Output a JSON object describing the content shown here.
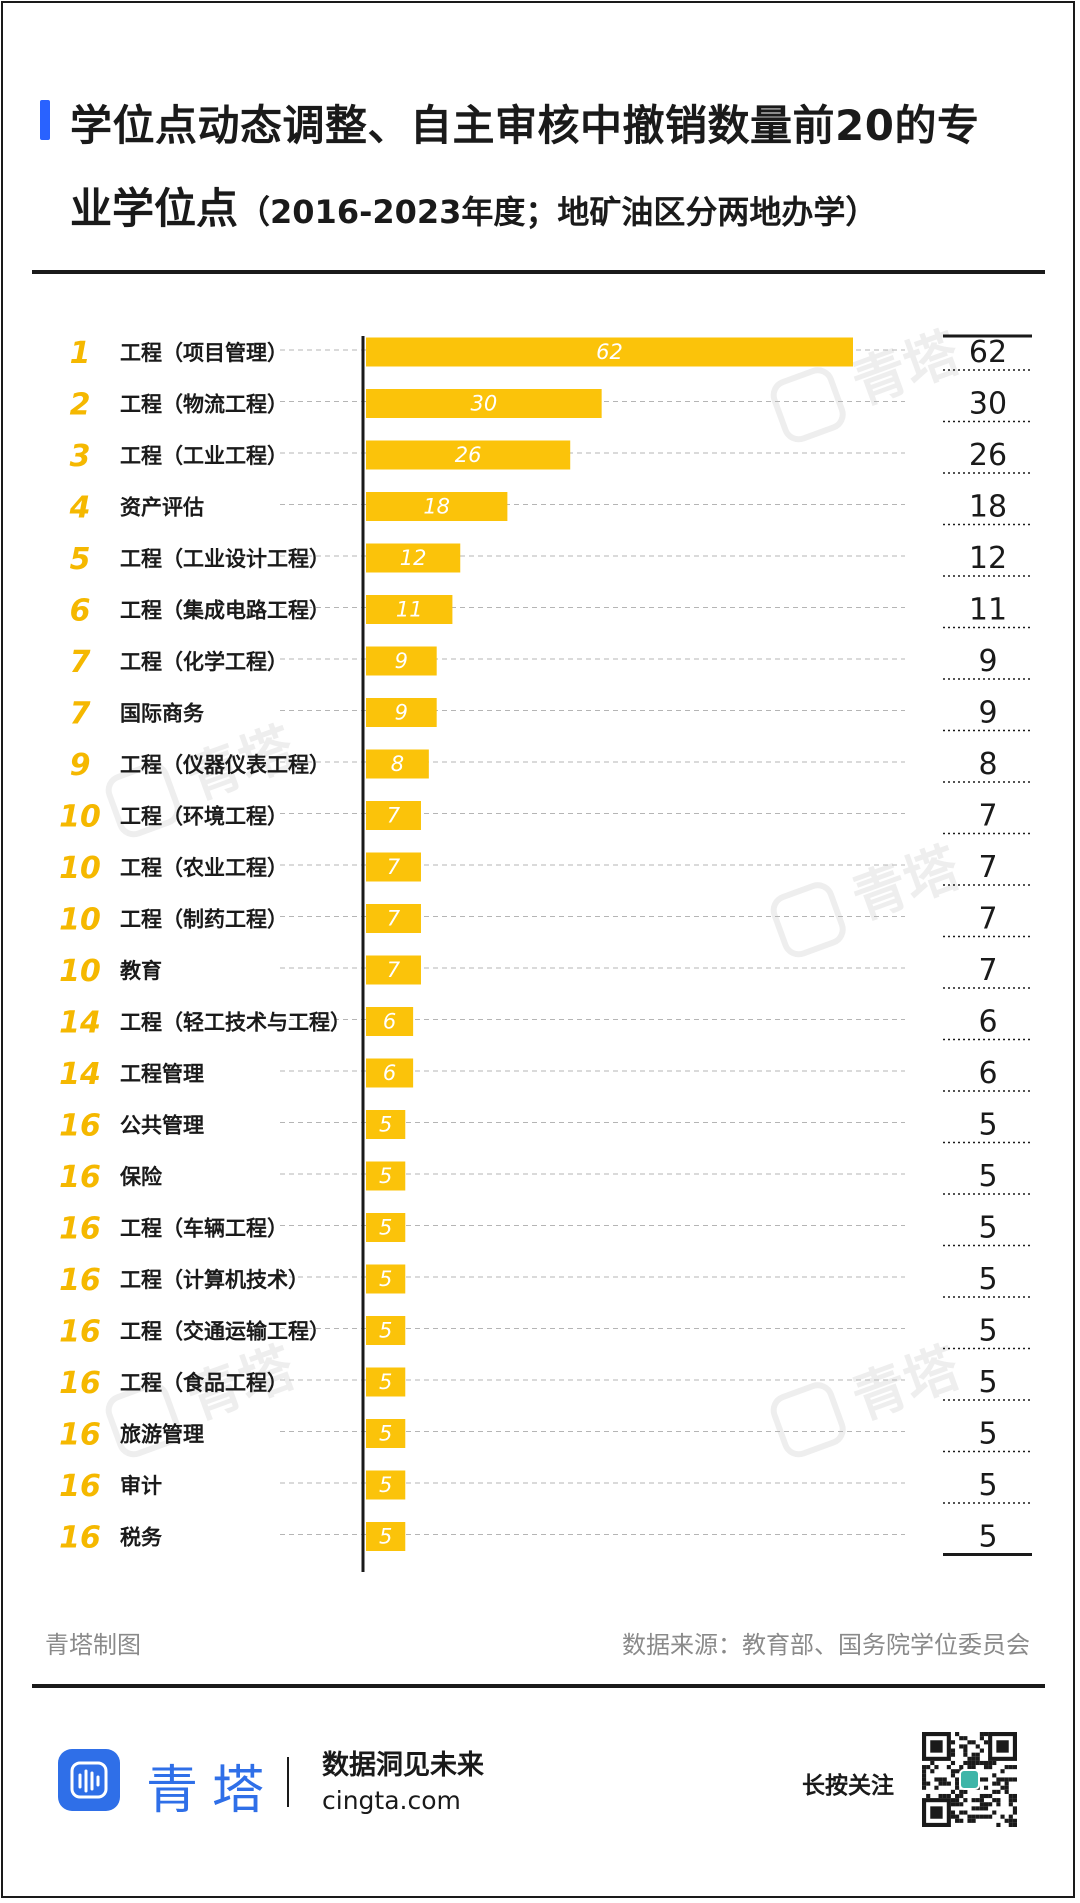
{
  "title": {
    "line1": "学位点动态调整、自主审核中撤销数量前20的专",
    "line2_main": "业学位点",
    "line2_sub": "（2016-2023年度；地矿油区分两地办学）"
  },
  "chart_data": {
    "type": "bar",
    "orientation": "horizontal",
    "title": "学位点动态调整、自主审核中撤销数量前20的专业学位点（2016-2023年度；地矿油区分两地办学）",
    "ranks": [
      "1",
      "2",
      "3",
      "4",
      "5",
      "6",
      "7",
      "7",
      "9",
      "10",
      "10",
      "10",
      "10",
      "14",
      "14",
      "16",
      "16",
      "16",
      "16",
      "16",
      "16",
      "16",
      "16",
      "16"
    ],
    "categories": [
      "工程（项目管理）",
      "工程（物流工程）",
      "工程（工业工程）",
      "资产评估",
      "工程（工业设计工程）",
      "工程（集成电路工程）",
      "工程（化学工程）",
      "国际商务",
      "工程（仪器仪表工程）",
      "工程（环境工程）",
      "工程（农业工程）",
      "工程（制药工程）",
      "教育",
      "工程（轻工技术与工程）",
      "工程管理",
      "公共管理",
      "保险",
      "工程（车辆工程）",
      "工程（计算机技术）",
      "工程（交通运输工程）",
      "工程（食品工程）",
      "旅游管理",
      "审计",
      "税务"
    ],
    "values": [
      62,
      30,
      26,
      18,
      12,
      11,
      9,
      9,
      8,
      7,
      7,
      7,
      7,
      6,
      6,
      5,
      5,
      5,
      5,
      5,
      5,
      5,
      5,
      5
    ],
    "xlim": [
      0,
      62
    ],
    "grid": true,
    "bar_color": "#fbc30a",
    "rank_color": "#f5b800"
  },
  "footer": {
    "left_credit": "青塔制图",
    "source": "数据来源：教育部、国务院学位委员会"
  },
  "brand": {
    "name": "青塔",
    "slogan": "数据洞见未来",
    "website": "cingta.com",
    "qr_prompt": "长按关注",
    "color": "#2f6fe8"
  },
  "watermark": "青塔"
}
